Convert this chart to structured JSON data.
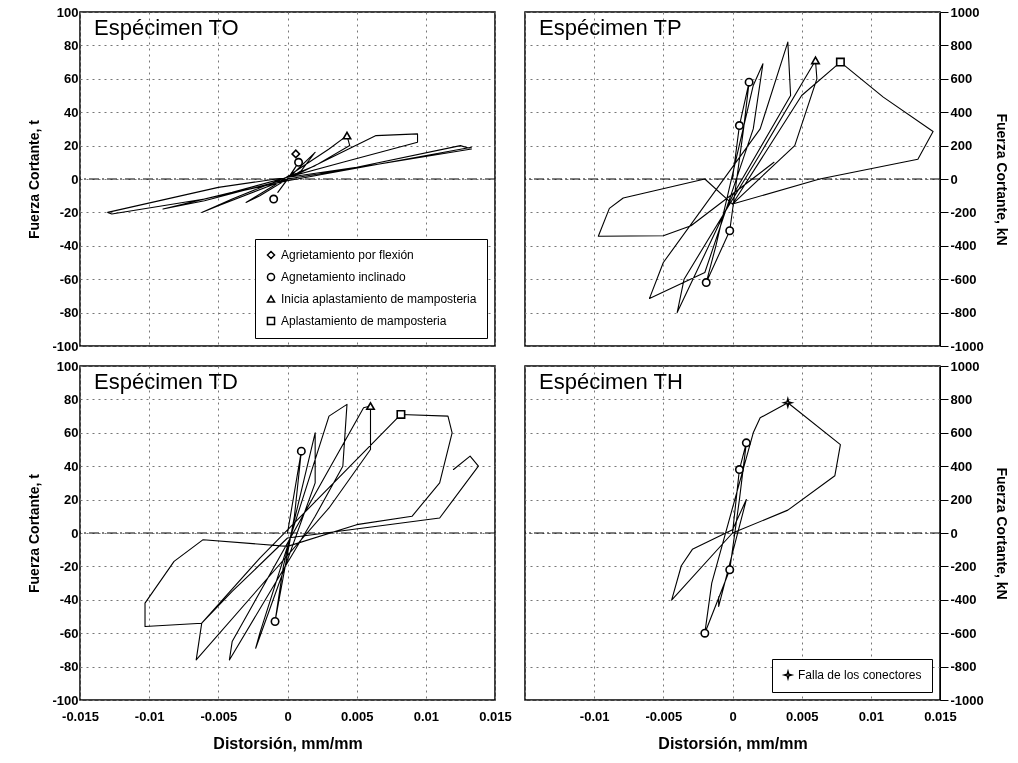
{
  "chart_data": [
    {
      "type": "line",
      "title": "Espécimen TO",
      "ylabel": "Fuerza Cortante, t",
      "xlim": [
        -0.015,
        0.015
      ],
      "xticks": [
        -0.015,
        -0.01,
        -0.005,
        0,
        0.005,
        0.01,
        0.015
      ],
      "ylim": [
        -100,
        100
      ],
      "yticks": [
        -100,
        -80,
        -60,
        -40,
        -20,
        0,
        20,
        40,
        60,
        80,
        100
      ],
      "tick_labels": "y",
      "grid": true,
      "legend": "bottom right",
      "ref_lines": [
        {
          "axis": "y",
          "value": 0,
          "line_style": "dashed"
        }
      ],
      "series": [
        {
          "type": "line",
          "color": "#000000",
          "x": [
            0,
            0.0008,
            0.0002,
            -0.0007,
            0,
            0.002,
            0.001,
            -0.002,
            -0.003,
            -0.001,
            0.003,
            0.0043,
            0.0045,
            0.002,
            -0.004,
            -0.0062,
            -0.005,
            0,
            0.0064,
            0.0094,
            0.0094,
            0.004,
            -0.004,
            -0.009,
            -0.006,
            0,
            0.0133,
            0.0125,
            0.005,
            -0.005,
            -0.013,
            -0.0127,
            -0.006,
            0,
            0.0133
          ],
          "values": [
            0,
            10,
            2,
            -8,
            0,
            16,
            5,
            -10,
            -14,
            -4,
            18,
            26,
            20,
            8,
            -12,
            -20,
            -16,
            0,
            26,
            27,
            22,
            10,
            -8,
            -18,
            -13,
            0,
            18,
            20,
            7,
            -5,
            -20,
            -21,
            -12,
            -1,
            19
          ]
        },
        {
          "type": "scatter",
          "name": "Agrietamiento por flexión",
          "marker": "diamond",
          "color": "#000000",
          "x": [
            0.0006
          ],
          "values": [
            15
          ]
        },
        {
          "type": "scatter",
          "name": "Agnetamiento inclinado",
          "marker": "circle",
          "color": "#000000",
          "x": [
            0.0008,
            -0.001
          ],
          "values": [
            10,
            -12
          ]
        },
        {
          "type": "scatter",
          "name": "Inicia aplastamiento de mamposteria",
          "marker": "triangle",
          "color": "#000000",
          "x": [
            0.0043
          ],
          "values": [
            26
          ]
        },
        {
          "type": "scatter",
          "name": "Aplastamiento de mamposteria",
          "marker": "square",
          "color": "#000000"
        }
      ]
    },
    {
      "type": "line",
      "title": "Espécimen TP",
      "y2label": "Fuerza Cortante, kN",
      "xlim": [
        -0.015,
        0.015
      ],
      "xticks": [
        -0.015,
        -0.01,
        -0.005,
        0,
        0.005,
        0.01,
        0.015
      ],
      "y2lim": [
        -1000,
        1000
      ],
      "y2ticks": [
        -1000,
        -800,
        -600,
        -400,
        -200,
        0,
        200,
        400,
        600,
        800,
        1000
      ],
      "tick_labels": "y",
      "grid": true,
      "ref_lines": [
        {
          "axis": "y2",
          "value": 0,
          "line_style": "dashed"
        }
      ],
      "series": [
        {
          "type": "line",
          "axis": "y2",
          "color": "#000000",
          "x": [
            0,
            0.0005,
            0.0012,
            0.0008,
            -0.0002,
            -0.0019,
            -0.0012,
            0.0015,
            0.0022,
            0.0015,
            -0.002,
            -0.006,
            -0.005,
            0.002,
            0.004,
            0.0042,
            0,
            -0.004,
            -0.0035,
            0.002,
            0.006,
            0.0061,
            0.0045,
            0,
            0.005,
            0.0078,
            0.0109,
            0.0145,
            0.0134,
            0.0063,
            0,
            -0.002,
            -0.0079,
            -0.0089,
            -0.0097,
            -0.005,
            -0.003,
            0.003
          ],
          "values": [
            0,
            320,
            580,
            300,
            -310,
            -620,
            -400,
            560,
            690,
            300,
            -560,
            -715,
            -500,
            300,
            820,
            500,
            -100,
            -800,
            -600,
            150,
            710,
            600,
            200,
            -150,
            500,
            700,
            490,
            284,
            118,
            0,
            -150,
            0,
            -114,
            -176,
            -343,
            -340,
            -280,
            100
          ]
        },
        {
          "type": "scatter",
          "axis": "y2",
          "marker": "circle",
          "color": "#000000",
          "x": [
            0.0012,
            0.0005,
            -0.0002,
            -0.0019
          ],
          "values": [
            580,
            320,
            -310,
            -620
          ]
        },
        {
          "type": "scatter",
          "axis": "y2",
          "marker": "triangle",
          "color": "#000000",
          "x": [
            0.006
          ],
          "values": [
            710
          ]
        },
        {
          "type": "scatter",
          "axis": "y2",
          "marker": "square",
          "color": "#000000",
          "x": [
            0.0078
          ],
          "values": [
            700
          ]
        }
      ]
    },
    {
      "type": "line",
      "title": "Espécimen TD",
      "xlabel": "Distorsión, mm/mm",
      "ylabel": "Fuerza Cortante, t",
      "xlim": [
        -0.015,
        0.015
      ],
      "xticks": [
        -0.015,
        -0.01,
        -0.005,
        0,
        0.005,
        0.01,
        0.015
      ],
      "ylim": [
        -100,
        100
      ],
      "yticks": [
        -100,
        -80,
        -60,
        -40,
        -20,
        0,
        20,
        40,
        60,
        80,
        100
      ],
      "grid": true,
      "ref_lines": [
        {
          "axis": "y",
          "value": 0,
          "line_style": "dashed"
        }
      ],
      "series": [
        {
          "type": "line",
          "color": "#000000",
          "x": [
            0,
            0.001,
            0.0005,
            -0.0009,
            -0.0003,
            0.002,
            0.002,
            -0.0023,
            -0.002,
            0.003,
            0.0043,
            0.004,
            0.002,
            -0.0042,
            -0.004,
            0.0055,
            0.006,
            0.006,
            0.003,
            -0.0066,
            -0.0062,
            -0.002,
            0.0082,
            0.0116,
            0.0119,
            0.011,
            0.009,
            0.005,
            0,
            -0.0061,
            -0.0082,
            -0.0103,
            -0.0103,
            -0.0062,
            -0.004,
            0,
            0.011,
            0.0138,
            0.0132,
            0.012
          ],
          "values": [
            0,
            49,
            10,
            -53,
            -20,
            60,
            30,
            -69,
            -60,
            70,
            77,
            40,
            10,
            -76,
            -65,
            75,
            76,
            50,
            15,
            -76,
            -54,
            -15,
            71,
            70,
            60,
            30,
            10,
            5,
            -8,
            -4,
            -17,
            -42,
            -56,
            -54,
            -35,
            -3,
            9,
            40,
            46,
            38
          ]
        },
        {
          "type": "scatter",
          "marker": "circle",
          "color": "#000000",
          "x": [
            0.001,
            -0.0009
          ],
          "values": [
            49,
            -53
          ]
        },
        {
          "type": "scatter",
          "marker": "triangle",
          "color": "#000000",
          "x": [
            0.006
          ],
          "values": [
            76
          ]
        },
        {
          "type": "scatter",
          "marker": "square",
          "color": "#000000",
          "x": [
            0.0082
          ],
          "values": [
            71
          ]
        }
      ]
    },
    {
      "type": "line",
      "title": "Espécimen TH",
      "xlabel": "Distorsión, mm/mm",
      "y2label": "Fuerza Cortante, kN",
      "xlim": [
        -0.015,
        0.015
      ],
      "xticks": [
        {
          "value": -0.015,
          "label": null
        },
        -0.01,
        -0.005,
        0,
        0.005,
        0.01,
        0.015
      ],
      "y2lim": [
        -1000,
        1000
      ],
      "y2ticks": [
        -1000,
        -800,
        -600,
        -400,
        -200,
        0,
        200,
        400,
        600,
        800,
        1000
      ],
      "grid": true,
      "legend": "bottom right",
      "ref_lines": [
        {
          "axis": "y2",
          "value": 0,
          "line_style": "dashed"
        }
      ],
      "series": [
        {
          "type": "line",
          "axis": "y2",
          "color": "#000000",
          "x": [
            0,
            0.0005,
            0.001,
            0.0005,
            -0.0002,
            -0.002,
            -0.0015,
            0.0015,
            0.002,
            0.004,
            0.0078,
            0.0074,
            0.004,
            0,
            -0.0044,
            -0.0037,
            -0.0029,
            0,
            0.001,
            -0.001,
            -0.001
          ],
          "values": [
            0,
            380,
            540,
            200,
            -220,
            -600,
            -300,
            600,
            690,
            780,
            529,
            343,
            137,
            0,
            -402,
            -196,
            -98,
            20,
            200,
            -440,
            -382
          ]
        },
        {
          "type": "scatter",
          "axis": "y2",
          "marker": "circle",
          "color": "#000000",
          "x": [
            0.001,
            0.0005,
            -0.0002,
            -0.002
          ],
          "values": [
            540,
            380,
            -220,
            -600
          ]
        },
        {
          "type": "scatter",
          "axis": "y2",
          "name": "Falla de los conectores",
          "marker": "star",
          "color": "#000000",
          "x": [
            0.004
          ],
          "values": [
            780
          ]
        }
      ]
    }
  ]
}
